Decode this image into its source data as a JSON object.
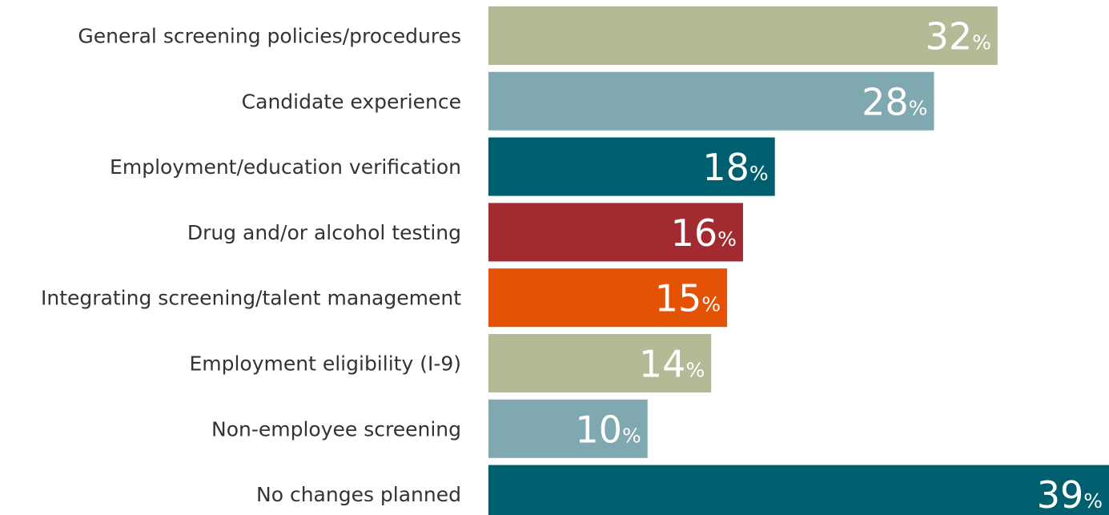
{
  "chart_data": {
    "type": "barh",
    "categories": [
      "General screening policies/procedures",
      "Candidate experience",
      "Employment/education verification",
      "Drug and/or alcohol testing",
      "Integrating screening/talent management",
      "Employment eligibility (I-9)",
      "Non-employee screening",
      "No changes planned"
    ],
    "values": [
      32,
      28,
      18,
      16,
      15,
      14,
      10,
      39
    ],
    "value_labels": [
      "32%",
      "28%",
      "18%",
      "16%",
      "15%",
      "14%",
      "10%",
      "39%"
    ],
    "colors": [
      "#b5b995",
      "#7fa8b0",
      "#005f6e",
      "#a22a31",
      "#e35205",
      "#b5b995",
      "#7fa8b0",
      "#005f6e"
    ],
    "xlim": [
      0,
      39
    ]
  }
}
